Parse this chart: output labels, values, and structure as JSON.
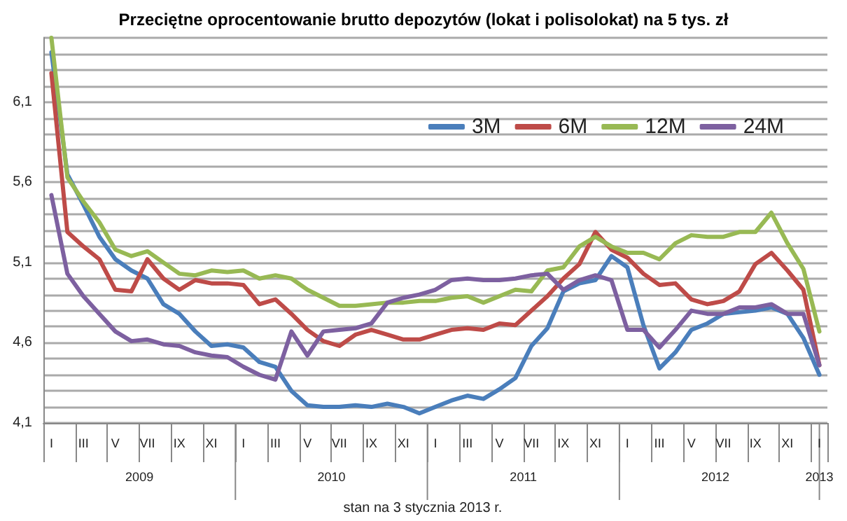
{
  "chart_data": {
    "type": "line",
    "title": "Przeciętne oprocentowanie brutto depozytów (lokat i polisolokat) na 5 tys. zł",
    "categories": [
      "I",
      null,
      "III",
      null,
      "V",
      null,
      "VII",
      null,
      "IX",
      null,
      "XI",
      null,
      "I",
      null,
      "III",
      null,
      "V",
      null,
      "VII",
      null,
      "IX",
      null,
      "XI",
      null,
      "I",
      null,
      "III",
      null,
      "V",
      null,
      "VII",
      null,
      "IX",
      null,
      "XI",
      null,
      "I",
      null,
      "III",
      null,
      "V",
      null,
      "VII",
      null,
      "IX",
      null,
      "XI",
      null,
      "I"
    ],
    "series": [
      {
        "name": "3M",
        "color": "#4a7ebb",
        "values": [
          6.41,
          5.65,
          5.46,
          5.26,
          5.12,
          5.05,
          5.0,
          4.84,
          4.78,
          4.67,
          4.58,
          4.59,
          4.57,
          4.48,
          4.45,
          4.3,
          4.21,
          4.2,
          4.2,
          4.21,
          4.2,
          4.22,
          4.2,
          4.16,
          4.2,
          4.24,
          4.27,
          4.25,
          4.31,
          4.38,
          4.58,
          4.69,
          4.92,
          4.97,
          4.99,
          5.14,
          5.07,
          4.71,
          4.44,
          4.54,
          4.68,
          4.72,
          4.78,
          4.79,
          4.8,
          4.82,
          4.78,
          4.63,
          4.4
        ]
      },
      {
        "name": "6M",
        "color": "#be4b48",
        "values": [
          6.28,
          5.29,
          5.2,
          5.12,
          4.93,
          4.92,
          5.12,
          5.0,
          4.93,
          4.99,
          4.97,
          4.97,
          4.96,
          4.84,
          4.87,
          4.78,
          4.68,
          4.61,
          4.58,
          4.65,
          4.68,
          4.65,
          4.62,
          4.62,
          4.65,
          4.68,
          4.69,
          4.68,
          4.72,
          4.71,
          4.8,
          4.89,
          5.0,
          5.09,
          5.29,
          5.18,
          5.13,
          5.03,
          4.96,
          4.97,
          4.87,
          4.84,
          4.86,
          4.92,
          5.09,
          5.16,
          5.05,
          4.93,
          4.46
        ]
      },
      {
        "name": "12M",
        "color": "#98b954",
        "values": [
          6.5,
          5.63,
          5.48,
          5.35,
          5.18,
          5.14,
          5.17,
          5.1,
          5.03,
          5.02,
          5.05,
          5.04,
          5.05,
          5.0,
          5.02,
          5.0,
          4.93,
          4.88,
          4.83,
          4.83,
          4.84,
          4.85,
          4.85,
          4.86,
          4.86,
          4.88,
          4.89,
          4.85,
          4.89,
          4.93,
          4.92,
          5.05,
          5.07,
          5.2,
          5.26,
          5.2,
          5.16,
          5.16,
          5.12,
          5.22,
          5.27,
          5.26,
          5.26,
          5.29,
          5.29,
          5.41,
          5.22,
          5.06,
          4.67
        ]
      },
      {
        "name": "24M",
        "color": "#7d60a0",
        "values": [
          5.52,
          5.03,
          4.89,
          4.78,
          4.67,
          4.61,
          4.62,
          4.59,
          4.58,
          4.54,
          4.52,
          4.51,
          4.45,
          4.4,
          4.37,
          4.67,
          4.52,
          4.67,
          4.68,
          4.69,
          4.72,
          4.85,
          4.88,
          4.9,
          4.93,
          4.99,
          5.0,
          4.99,
          4.99,
          5.0,
          5.02,
          5.03,
          4.93,
          4.99,
          5.02,
          4.99,
          4.68,
          4.68,
          4.57,
          4.68,
          4.8,
          4.78,
          4.78,
          4.82,
          4.82,
          4.84,
          4.78,
          4.78,
          4.46
        ]
      }
    ],
    "ylim": [
      4.1,
      6.5
    ],
    "yticks": [
      {
        "value": 4.1,
        "label": "4,1"
      },
      {
        "value": 4.2,
        "label": null
      },
      {
        "value": 4.3,
        "label": null
      },
      {
        "value": 4.4,
        "label": null
      },
      {
        "value": 4.5,
        "label": null
      },
      {
        "value": 4.6,
        "label": "4,6"
      },
      {
        "value": 4.7,
        "label": null
      },
      {
        "value": 4.8,
        "label": null
      },
      {
        "value": 4.9,
        "label": null
      },
      {
        "value": 5.0,
        "label": null
      },
      {
        "value": 5.1,
        "label": "5,1"
      },
      {
        "value": 5.2,
        "label": null
      },
      {
        "value": 5.3,
        "label": null
      },
      {
        "value": 5.4,
        "label": null
      },
      {
        "value": 5.5,
        "label": null
      },
      {
        "value": 5.6,
        "label": "5,6"
      },
      {
        "value": 5.7,
        "label": null
      },
      {
        "value": 5.8,
        "label": null
      },
      {
        "value": 5.9,
        "label": null
      },
      {
        "value": 6.0,
        "label": null
      },
      {
        "value": 6.1,
        "label": "6,1"
      },
      {
        "value": 6.2,
        "label": null
      },
      {
        "value": 6.3,
        "label": null
      },
      {
        "value": 6.4,
        "label": null
      },
      {
        "value": 6.5,
        "label": null
      }
    ],
    "grid": "y",
    "legend": "top right",
    "marker": "none",
    "line_style": "solid",
    "annotations": [
      "2009",
      "2010",
      "2011",
      "2012",
      "2013",
      "stan na 3 stycznia 2013 r."
    ]
  }
}
